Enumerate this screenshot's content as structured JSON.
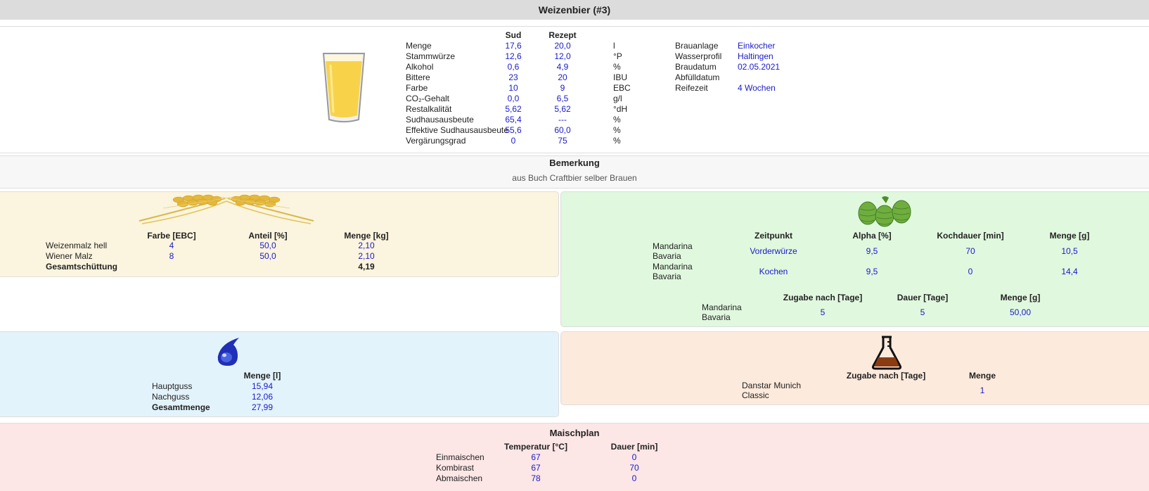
{
  "header": {
    "title": "Weizenbier (#3)"
  },
  "overview": {
    "col_sud": "Sud",
    "col_rezept": "Rezept",
    "rows": [
      {
        "label": "Menge",
        "sud": "17,6",
        "rezept": "20,0",
        "unit": "l"
      },
      {
        "label": "Stammwürze",
        "sud": "12,6",
        "rezept": "12,0",
        "unit": "°P"
      },
      {
        "label": "Alkohol",
        "sud": "0,6",
        "rezept": "4,9",
        "unit": "%"
      },
      {
        "label": "Bittere",
        "sud": "23",
        "rezept": "20",
        "unit": "IBU"
      },
      {
        "label": "Farbe",
        "sud": "10",
        "rezept": "9",
        "unit": "EBC"
      },
      {
        "label": "CO₂-Gehalt",
        "sud": "0,0",
        "rezept": "6,5",
        "unit": "g/l"
      },
      {
        "label": "Restalkalität",
        "sud": "5,62",
        "rezept": "5,62",
        "unit": "°dH"
      },
      {
        "label": "Sudhausausbeute",
        "sud": "65,4",
        "rezept": "---",
        "unit": "%"
      },
      {
        "label": "Effektive Sudhausausbeute",
        "sud": "55,6",
        "rezept": "60,0",
        "unit": "%"
      },
      {
        "label": "Vergärungsgrad",
        "sud": "0",
        "rezept": "75",
        "unit": "%"
      }
    ],
    "info": [
      {
        "label": "Brauanlage",
        "value": "Einkocher"
      },
      {
        "label": "Wasserprofil",
        "value": "Haltingen"
      },
      {
        "label": "Braudatum",
        "value": "02.05.2021"
      },
      {
        "label": "Abfülldatum",
        "value": ""
      },
      {
        "label": "Reifezeit",
        "value": "4 Wochen"
      }
    ]
  },
  "bemerkung": {
    "title": "Bemerkung",
    "text": "aus Buch Craftbier selber Brauen"
  },
  "malz": {
    "icon": "wheat-icon",
    "headers": [
      "Farbe [EBC]",
      "Anteil [%]",
      "Menge [kg]"
    ],
    "rows": [
      {
        "name": "Weizenmalz hell",
        "farbe": "4",
        "anteil": "50,0",
        "menge": "2,10"
      },
      {
        "name": "Wiener Malz",
        "farbe": "8",
        "anteil": "50,0",
        "menge": "2,10"
      }
    ],
    "total_label": "Gesamtschüttung",
    "total_value": "4,19"
  },
  "hopfen": {
    "icon": "hops-icon",
    "headers": [
      "Zeitpunkt",
      "Alpha [%]",
      "Kochdauer [min]",
      "Menge [g]"
    ],
    "rows": [
      {
        "name1": "Mandarina",
        "name2": "Bavaria",
        "zeitpunkt": "Vorderwürze",
        "alpha": "9,5",
        "kochdauer": "70",
        "menge": "10,5"
      },
      {
        "name1": "Mandarina",
        "name2": "Bavaria",
        "zeitpunkt": "Kochen",
        "alpha": "9,5",
        "kochdauer": "0",
        "menge": "14,4"
      }
    ],
    "dry_headers": [
      "Zugabe nach [Tage]",
      "Dauer [Tage]",
      "Menge [g]"
    ],
    "dry_rows": [
      {
        "name1": "Mandarina",
        "name2": "Bavaria",
        "zugabe": "5",
        "dauer": "5",
        "menge": "50,00"
      }
    ]
  },
  "wasser": {
    "icon": "water-drop-icon",
    "header": "Menge [l]",
    "rows": [
      {
        "label": "Hauptguss",
        "value": "15,94"
      },
      {
        "label": "Nachguss",
        "value": "12,06"
      }
    ],
    "total_label": "Gesamtmenge",
    "total_value": "27,99"
  },
  "hefe": {
    "icon": "flask-icon",
    "headers": [
      "Zugabe nach [Tage]",
      "Menge"
    ],
    "rows": [
      {
        "name1": "Danstar Munich",
        "name2": "Classic",
        "zugabe": "",
        "menge": "1"
      }
    ]
  },
  "maischplan": {
    "title": "Maischplan",
    "headers": [
      "Temperatur [°C]",
      "Dauer [min]"
    ],
    "rows": [
      {
        "label": "Einmaischen",
        "temp": "67",
        "dauer": "0"
      },
      {
        "label": "Kombirast",
        "temp": "67",
        "dauer": "70"
      },
      {
        "label": "Abmaischen",
        "temp": "78",
        "dauer": "0"
      }
    ]
  },
  "colors": {
    "link_blue": "#1a1acc",
    "malz_bg": "#fbf4de",
    "hopfen_bg": "#e0f8de",
    "wasser_bg": "#e3f3fb",
    "hefe_bg": "#fceadc",
    "maisch_bg": "#fce6e6",
    "beer": "#f8d34a"
  }
}
